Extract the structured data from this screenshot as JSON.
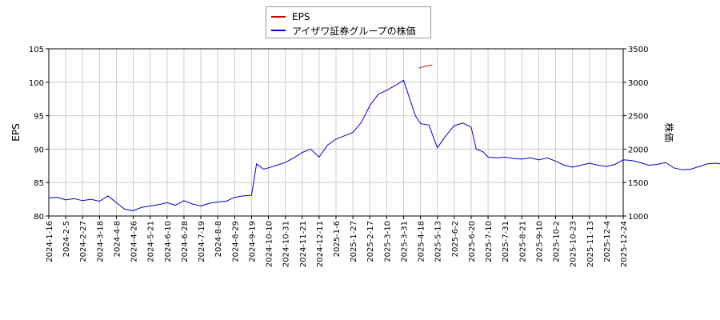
{
  "chart_data": {
    "type": "line",
    "legend": {
      "placement": "top-center"
    },
    "grid": true,
    "x_ticks": [
      "2024-1-16",
      "2024-2-5",
      "2024-2-27",
      "2024-3-18",
      "2024-4-8",
      "2024-4-26",
      "2024-5-21",
      "2024-6-10",
      "2024-6-28",
      "2024-7-19",
      "2024-8-8",
      "2024-8-29",
      "2024-9-19",
      "2024-10-10",
      "2024-10-31",
      "2024-11-21",
      "2024-12-11",
      "2025-1-6",
      "2025-1-27",
      "2025-2-17",
      "2025-3-10",
      "2025-3-31",
      "2025-4-18",
      "2025-5-13",
      "2025-6-2",
      "2025-6-20",
      "2025-7-10",
      "2025-7-31",
      "2025-8-21",
      "2025-9-10",
      "2025-10-2",
      "2025-10-23",
      "2025-11-13",
      "2025-12-4",
      "2025-12-24"
    ],
    "y_left": {
      "label": "EPS",
      "ylim": [
        80,
        105
      ],
      "ticks": [
        "80",
        "85",
        "90",
        "95",
        "100",
        "105"
      ]
    },
    "y_right": {
      "label": "株価",
      "ylim": [
        1000,
        3500
      ],
      "ticks": [
        "1000",
        "1500",
        "2000",
        "2500",
        "3000",
        "3500"
      ]
    },
    "series": [
      {
        "name": "EPS",
        "color": "#cc0000",
        "axis": "left",
        "points": [
          [
            21.9,
            102.1
          ],
          [
            22.3,
            102.4
          ],
          [
            22.7,
            102.6
          ]
        ]
      },
      {
        "name": "アイザワ証券グループの株価",
        "color": "#0000cc",
        "axis": "right",
        "points": [
          [
            0.0,
            1270
          ],
          [
            0.5,
            1280
          ],
          [
            1.0,
            1240
          ],
          [
            1.5,
            1260
          ],
          [
            2.0,
            1230
          ],
          [
            2.5,
            1250
          ],
          [
            3.0,
            1220
          ],
          [
            3.5,
            1300
          ],
          [
            4.0,
            1200
          ],
          [
            4.5,
            1100
          ],
          [
            5.0,
            1080
          ],
          [
            5.5,
            1130
          ],
          [
            6.0,
            1150
          ],
          [
            6.5,
            1170
          ],
          [
            7.0,
            1200
          ],
          [
            7.5,
            1160
          ],
          [
            8.0,
            1230
          ],
          [
            8.5,
            1180
          ],
          [
            9.0,
            1150
          ],
          [
            9.5,
            1190
          ],
          [
            10.0,
            1210
          ],
          [
            10.5,
            1220
          ],
          [
            11.0,
            1280
          ],
          [
            11.5,
            1300
          ],
          [
            12.0,
            1310
          ],
          [
            12.3,
            1780
          ],
          [
            12.7,
            1700
          ],
          [
            13.0,
            1720
          ],
          [
            13.5,
            1760
          ],
          [
            14.0,
            1800
          ],
          [
            14.5,
            1870
          ],
          [
            15.0,
            1950
          ],
          [
            15.5,
            2000
          ],
          [
            16.0,
            1880
          ],
          [
            16.5,
            2060
          ],
          [
            17.0,
            2150
          ],
          [
            17.5,
            2200
          ],
          [
            18.0,
            2250
          ],
          [
            18.5,
            2400
          ],
          [
            19.0,
            2650
          ],
          [
            19.5,
            2820
          ],
          [
            20.0,
            2880
          ],
          [
            20.5,
            2950
          ],
          [
            21.0,
            3030
          ],
          [
            21.3,
            2800
          ],
          [
            21.7,
            2500
          ],
          [
            22.0,
            2380
          ],
          [
            22.5,
            2360
          ],
          [
            23.0,
            2020
          ],
          [
            23.5,
            2200
          ],
          [
            24.0,
            2350
          ],
          [
            24.5,
            2390
          ],
          [
            25.0,
            2330
          ],
          [
            25.3,
            2000
          ],
          [
            25.7,
            1960
          ],
          [
            26.0,
            1880
          ],
          [
            26.5,
            1870
          ],
          [
            27.0,
            1880
          ],
          [
            27.5,
            1860
          ],
          [
            28.0,
            1850
          ],
          [
            28.5,
            1870
          ],
          [
            29.0,
            1840
          ],
          [
            29.5,
            1870
          ],
          [
            30.0,
            1820
          ],
          [
            30.5,
            1760
          ],
          [
            31.0,
            1730
          ],
          [
            31.5,
            1760
          ],
          [
            32.0,
            1790
          ],
          [
            32.5,
            1760
          ],
          [
            33.0,
            1740
          ],
          [
            33.5,
            1770
          ],
          [
            34.0,
            1840
          ],
          [
            34.5,
            1830
          ],
          [
            35.0,
            1800
          ],
          [
            35.5,
            1760
          ],
          [
            36.0,
            1770
          ],
          [
            36.5,
            1800
          ],
          [
            37.0,
            1720
          ],
          [
            37.5,
            1690
          ],
          [
            38.0,
            1700
          ],
          [
            38.5,
            1740
          ],
          [
            39.0,
            1780
          ],
          [
            39.5,
            1790
          ],
          [
            40.0,
            1770
          ],
          [
            40.5,
            1800
          ],
          [
            41.0,
            1800
          ],
          [
            41.5,
            1760
          ],
          [
            42.0,
            1730
          ],
          [
            42.5,
            1710
          ],
          [
            43.0,
            1700
          ],
          [
            43.5,
            1720
          ],
          [
            44.0,
            1750
          ],
          [
            44.5,
            1680
          ],
          [
            44.8,
            1500
          ],
          [
            45.1,
            1230
          ],
          [
            45.5,
            1300
          ],
          [
            46.0,
            1280
          ],
          [
            46.5,
            1310
          ],
          [
            47.0,
            1300
          ],
          [
            47.5,
            1280
          ],
          [
            48.0,
            1270
          ],
          [
            48.5,
            1240
          ],
          [
            49.0,
            1230
          ],
          [
            49.5,
            1250
          ],
          [
            50.0,
            1270
          ],
          [
            50.5,
            1270
          ],
          [
            51.0,
            1250
          ],
          [
            51.5,
            1240
          ],
          [
            52.0,
            1240
          ],
          [
            52.5,
            1330
          ],
          [
            53.0,
            1330
          ],
          [
            53.5,
            1340
          ],
          [
            54.0,
            1350
          ],
          [
            54.5,
            1340
          ],
          [
            55.0,
            1310
          ],
          [
            55.5,
            1320
          ],
          [
            56.0,
            1360
          ],
          [
            56.5,
            1380
          ],
          [
            57.0,
            1400
          ],
          [
            57.5,
            1400
          ],
          [
            58.0,
            1410
          ],
          [
            58.5,
            1420
          ],
          [
            59.0,
            1420
          ],
          [
            59.5,
            1420
          ],
          [
            60.0,
            1400
          ],
          [
            60.5,
            1310
          ],
          [
            61.0,
            1330
          ],
          [
            61.5,
            1330
          ],
          [
            62.0,
            1320
          ],
          [
            62.5,
            1330
          ],
          [
            63.0,
            1290
          ],
          [
            63.5,
            1320
          ],
          [
            64.0,
            1330
          ],
          [
            64.5,
            1300
          ],
          [
            65.0,
            1340
          ],
          [
            65.5,
            1350
          ],
          [
            66.0,
            1360
          ],
          [
            66.5,
            1360
          ],
          [
            67.0,
            1380
          ],
          [
            67.5,
            1380
          ],
          [
            68.0,
            1400
          ],
          [
            68.5,
            1420
          ],
          [
            69.0,
            1420
          ],
          [
            69.5,
            1430
          ],
          [
            70.0,
            1440
          ]
        ]
      }
    ]
  }
}
